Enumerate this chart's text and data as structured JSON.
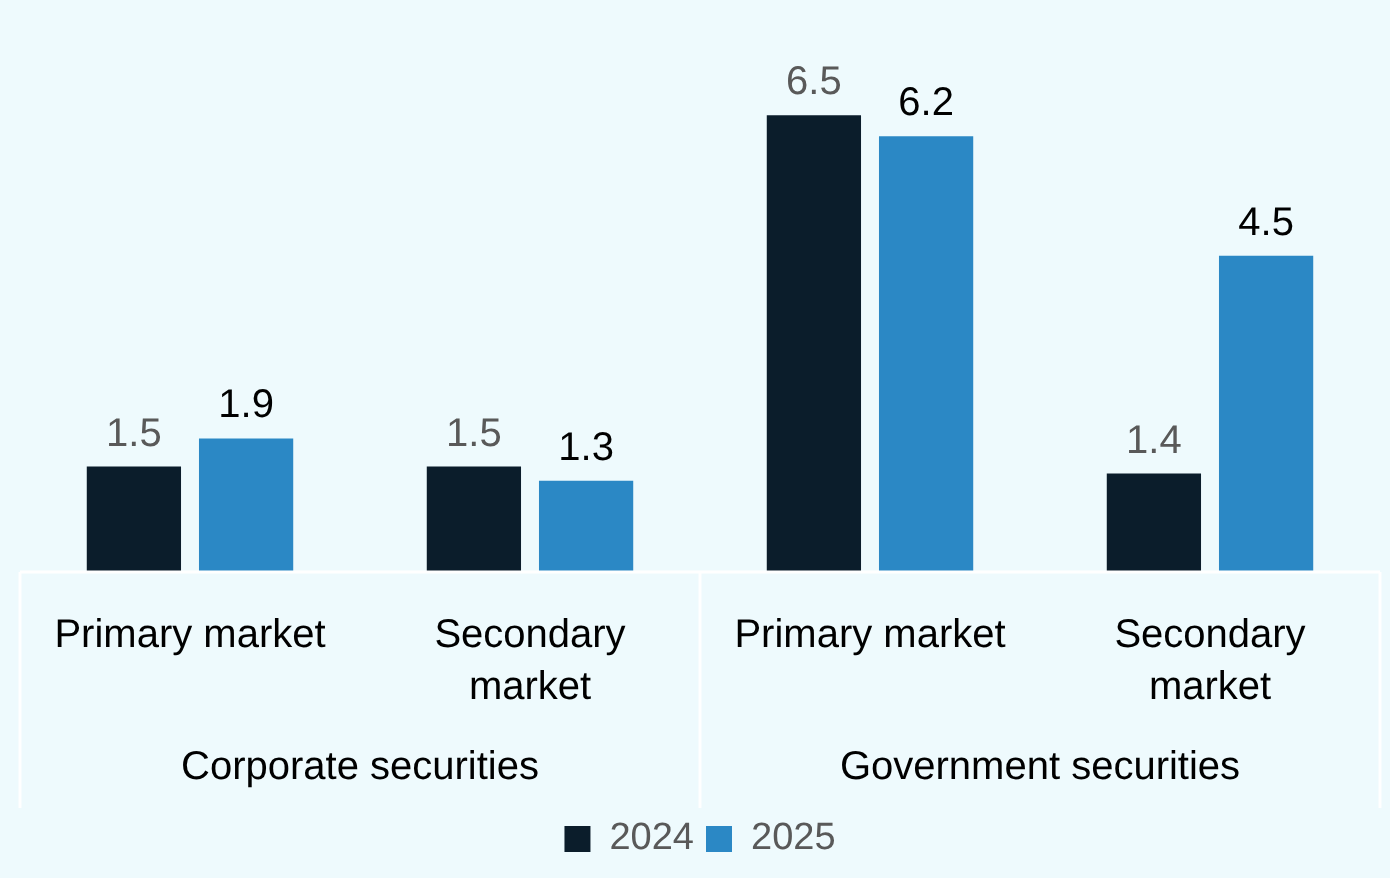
{
  "chart_data": {
    "type": "bar",
    "categories": [
      "Primary market",
      "Secondary market",
      "Primary market",
      "Secondary market"
    ],
    "series": [
      {
        "name": "2024",
        "color": "#0b1d2b",
        "values": [
          1.5,
          1.5,
          6.5,
          1.4
        ]
      },
      {
        "name": "2025",
        "color": "#2b88c5",
        "values": [
          1.9,
          1.3,
          6.2,
          4.5
        ]
      }
    ],
    "annotations": [
      "Corporate securities",
      "Government securities"
    ],
    "data_labels": true,
    "legend": "bottom"
  }
}
